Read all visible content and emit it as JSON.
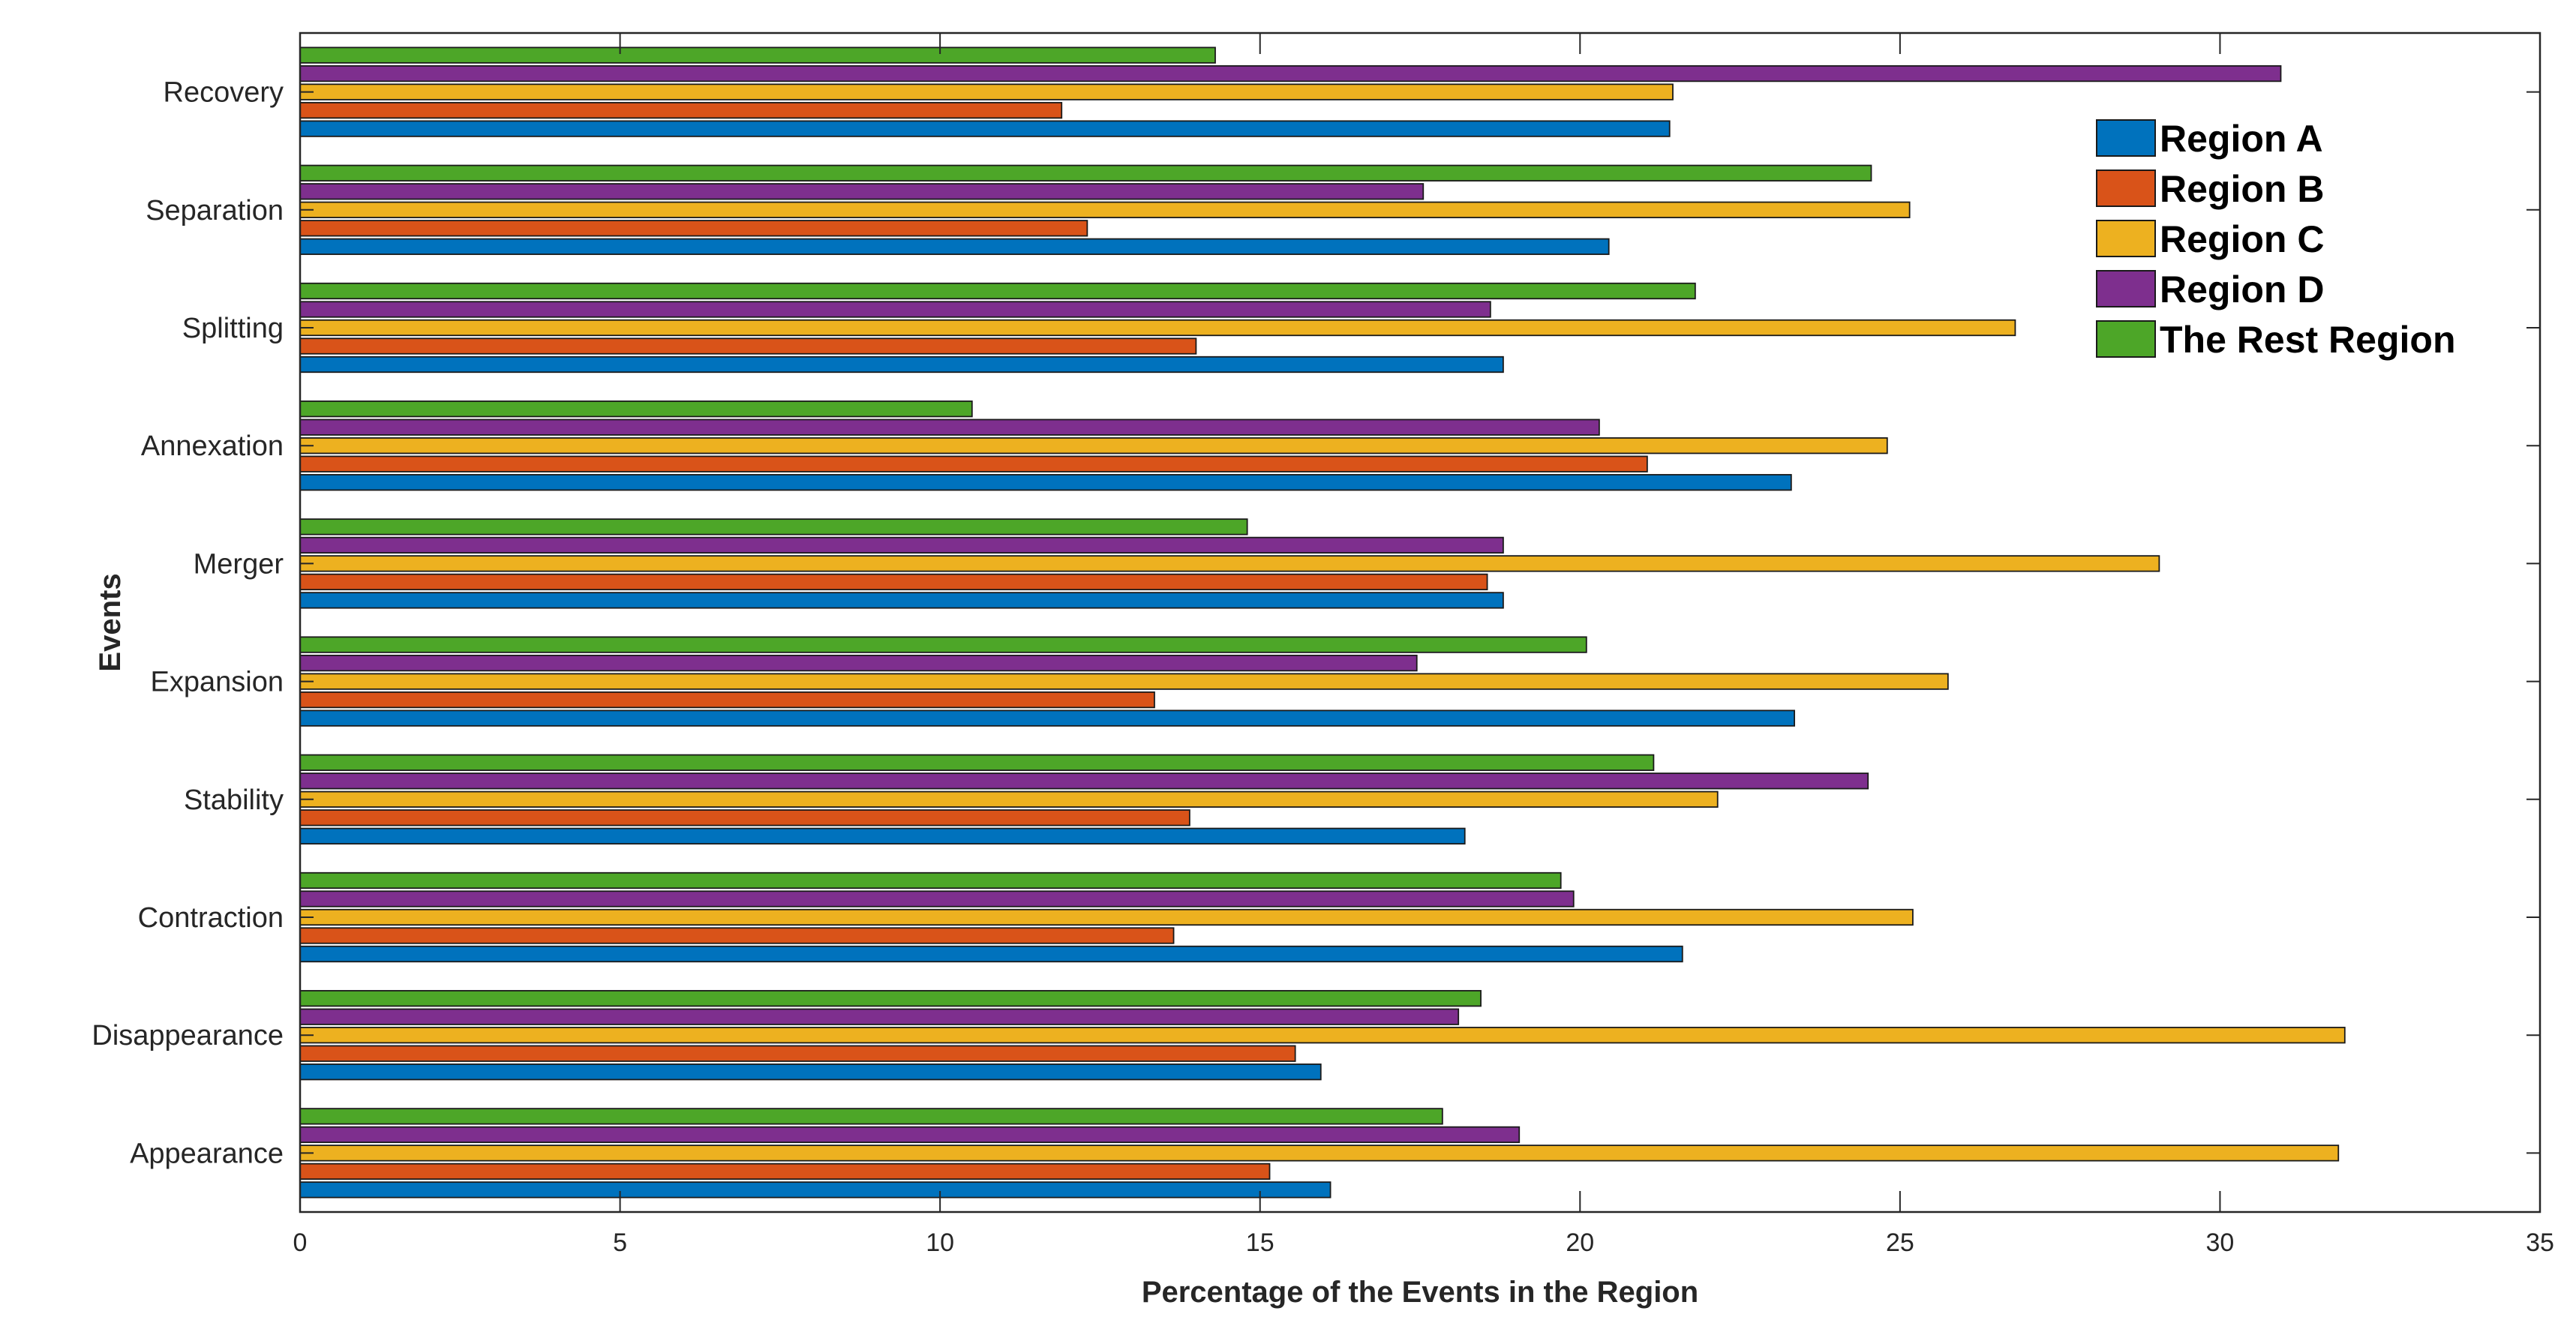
{
  "chart_data": {
    "type": "bar",
    "orientation": "horizontal",
    "title": "",
    "xlabel": "Percentage of the Events in the Region",
    "ylabel": "Events",
    "xlim": [
      0,
      35
    ],
    "xticks": [
      0,
      5,
      10,
      15,
      20,
      25,
      30,
      35
    ],
    "grid": false,
    "legend_position": "top-right",
    "categories": [
      "Appearance",
      "Disappearance",
      "Contraction",
      "Stability",
      "Expansion",
      "Merger",
      "Annexation",
      "Splitting",
      "Separation",
      "Recovery"
    ],
    "series": [
      {
        "name": "Region A",
        "color": "#0072BD",
        "values": [
          16.1,
          15.95,
          21.6,
          18.2,
          23.35,
          18.8,
          23.3,
          18.8,
          20.45,
          21.4
        ]
      },
      {
        "name": "Region B",
        "color": "#D95319",
        "values": [
          15.15,
          15.55,
          13.65,
          13.9,
          13.35,
          18.55,
          21.05,
          14.0,
          12.3,
          11.9
        ]
      },
      {
        "name": "Region C",
        "color": "#EDB120",
        "values": [
          31.85,
          31.95,
          25.2,
          22.15,
          25.75,
          29.05,
          24.8,
          26.8,
          25.15,
          21.45
        ]
      },
      {
        "name": "Region D",
        "color": "#7E2F8E",
        "values": [
          19.05,
          18.1,
          19.9,
          24.5,
          17.45,
          18.8,
          20.3,
          18.6,
          17.55,
          30.95
        ]
      },
      {
        "name": "The Rest Region",
        "color": "#4DA628",
        "values": [
          17.85,
          18.45,
          19.7,
          21.15,
          20.1,
          14.8,
          10.5,
          21.8,
          24.55,
          14.3
        ]
      }
    ]
  }
}
